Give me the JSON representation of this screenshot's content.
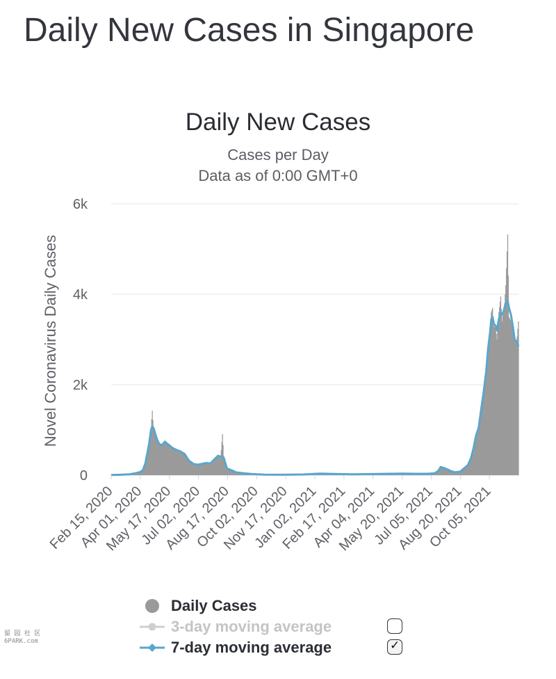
{
  "page": {
    "title": "Daily New Cases in Singapore"
  },
  "chart_data": {
    "type": "bar",
    "title": "Daily New Cases",
    "subtitle_lines": [
      "Cases per Day",
      "Data as of 0:00 GMT+0"
    ],
    "ylabel": "Novel Coronavirus Daily Cases",
    "xlabel": "",
    "ylim": [
      0,
      6000
    ],
    "yticks": [
      {
        "value": 0,
        "label": "0"
      },
      {
        "value": 2000,
        "label": "2k"
      },
      {
        "value": 4000,
        "label": "4k"
      },
      {
        "value": 6000,
        "label": "6k"
      }
    ],
    "x_start": "2020-02-15",
    "x_end": "2021-11-20",
    "xticks": [
      {
        "label": "Feb 15, 2020",
        "date": "2020-02-15"
      },
      {
        "label": "Apr 01, 2020",
        "date": "2020-04-01"
      },
      {
        "label": "May 17, 2020",
        "date": "2020-05-17"
      },
      {
        "label": "Jul 02, 2020",
        "date": "2020-07-02"
      },
      {
        "label": "Aug 17, 2020",
        "date": "2020-08-17"
      },
      {
        "label": "Oct 02, 2020",
        "date": "2020-10-02"
      },
      {
        "label": "Nov 17, 2020",
        "date": "2020-11-17"
      },
      {
        "label": "Jan 02, 2021",
        "date": "2021-01-02"
      },
      {
        "label": "Feb 17, 2021",
        "date": "2021-02-17"
      },
      {
        "label": "Apr 04, 2021",
        "date": "2021-04-04"
      },
      {
        "label": "May 20, 2021",
        "date": "2021-05-20"
      },
      {
        "label": "Jul 05, 2021",
        "date": "2021-07-05"
      },
      {
        "label": "Aug 20, 2021",
        "date": "2021-08-20"
      },
      {
        "label": "Oct 05, 2021",
        "date": "2021-10-05"
      }
    ],
    "series": [
      {
        "name": "Daily Cases",
        "kind": "bar",
        "color": "#9a9a9a",
        "points": [
          [
            "2020-02-15",
            5
          ],
          [
            "2020-03-01",
            10
          ],
          [
            "2020-03-15",
            20
          ],
          [
            "2020-03-25",
            50
          ],
          [
            "2020-04-01",
            70
          ],
          [
            "2020-04-05",
            120
          ],
          [
            "2020-04-09",
            290
          ],
          [
            "2020-04-12",
            500
          ],
          [
            "2020-04-15",
            700
          ],
          [
            "2020-04-18",
            1050
          ],
          [
            "2020-04-20",
            1426
          ],
          [
            "2020-04-22",
            1010
          ],
          [
            "2020-04-25",
            920
          ],
          [
            "2020-04-28",
            800
          ],
          [
            "2020-05-01",
            700
          ],
          [
            "2020-05-05",
            650
          ],
          [
            "2020-05-10",
            760
          ],
          [
            "2020-05-13",
            720
          ],
          [
            "2020-05-17",
            680
          ],
          [
            "2020-05-22",
            600
          ],
          [
            "2020-05-28",
            560
          ],
          [
            "2020-06-03",
            530
          ],
          [
            "2020-06-10",
            470
          ],
          [
            "2020-06-17",
            300
          ],
          [
            "2020-06-24",
            240
          ],
          [
            "2020-07-01",
            220
          ],
          [
            "2020-07-07",
            250
          ],
          [
            "2020-07-14",
            280
          ],
          [
            "2020-07-21",
            260
          ],
          [
            "2020-07-28",
            390
          ],
          [
            "2020-08-02",
            420
          ],
          [
            "2020-08-06",
            380
          ],
          [
            "2020-08-09",
            909
          ],
          [
            "2020-08-11",
            420
          ],
          [
            "2020-08-16",
            140
          ],
          [
            "2020-08-23",
            110
          ],
          [
            "2020-08-30",
            60
          ],
          [
            "2020-09-10",
            40
          ],
          [
            "2020-09-25",
            25
          ],
          [
            "2020-10-15",
            10
          ],
          [
            "2020-11-15",
            8
          ],
          [
            "2020-12-15",
            15
          ],
          [
            "2021-01-10",
            30
          ],
          [
            "2021-02-01",
            25
          ],
          [
            "2021-03-01",
            15
          ],
          [
            "2021-04-01",
            25
          ],
          [
            "2021-05-01",
            30
          ],
          [
            "2021-05-20",
            35
          ],
          [
            "2021-06-10",
            28
          ],
          [
            "2021-07-01",
            30
          ],
          [
            "2021-07-10",
            40
          ],
          [
            "2021-07-16",
            80
          ],
          [
            "2021-07-20",
            180
          ],
          [
            "2021-07-24",
            160
          ],
          [
            "2021-07-30",
            130
          ],
          [
            "2021-08-06",
            80
          ],
          [
            "2021-08-12",
            60
          ],
          [
            "2021-08-20",
            80
          ],
          [
            "2021-08-26",
            150
          ],
          [
            "2021-09-01",
            200
          ],
          [
            "2021-09-06",
            350
          ],
          [
            "2021-09-10",
            550
          ],
          [
            "2021-09-14",
            850
          ],
          [
            "2021-09-18",
            1000
          ],
          [
            "2021-09-22",
            1400
          ],
          [
            "2021-09-26",
            1800
          ],
          [
            "2021-09-30",
            2200
          ],
          [
            "2021-10-03",
            2700
          ],
          [
            "2021-10-06",
            3100
          ],
          [
            "2021-10-08",
            3600
          ],
          [
            "2021-10-10",
            3700
          ],
          [
            "2021-10-12",
            3300
          ],
          [
            "2021-10-15",
            3250
          ],
          [
            "2021-10-17",
            3000
          ],
          [
            "2021-10-20",
            3600
          ],
          [
            "2021-10-23",
            3950
          ],
          [
            "2021-10-25",
            3400
          ],
          [
            "2021-10-27",
            3650
          ],
          [
            "2021-10-29",
            3800
          ],
          [
            "2021-10-31",
            4200
          ],
          [
            "2021-11-03",
            5324
          ],
          [
            "2021-11-05",
            3500
          ],
          [
            "2021-11-08",
            3400
          ],
          [
            "2021-11-11",
            3200
          ],
          [
            "2021-11-14",
            3000
          ],
          [
            "2021-11-17",
            2900
          ],
          [
            "2021-11-20",
            3400
          ]
        ]
      },
      {
        "name": "3-day moving average",
        "kind": "line",
        "color": "#cfcfcf",
        "enabled": false
      },
      {
        "name": "7-day moving average",
        "kind": "line",
        "color": "#5aa6cc",
        "enabled": true,
        "points": [
          [
            "2020-02-15",
            5
          ],
          [
            "2020-03-01",
            10
          ],
          [
            "2020-03-15",
            20
          ],
          [
            "2020-03-25",
            45
          ],
          [
            "2020-04-01",
            70
          ],
          [
            "2020-04-05",
            110
          ],
          [
            "2020-04-09",
            260
          ],
          [
            "2020-04-12",
            480
          ],
          [
            "2020-04-15",
            700
          ],
          [
            "2020-04-18",
            1000
          ],
          [
            "2020-04-20",
            1080
          ],
          [
            "2020-04-22",
            1040
          ],
          [
            "2020-04-25",
            900
          ],
          [
            "2020-04-28",
            770
          ],
          [
            "2020-05-01",
            690
          ],
          [
            "2020-05-05",
            660
          ],
          [
            "2020-05-10",
            740
          ],
          [
            "2020-05-13",
            700
          ],
          [
            "2020-05-17",
            660
          ],
          [
            "2020-05-22",
            600
          ],
          [
            "2020-05-28",
            560
          ],
          [
            "2020-06-03",
            530
          ],
          [
            "2020-06-10",
            470
          ],
          [
            "2020-06-17",
            320
          ],
          [
            "2020-06-24",
            250
          ],
          [
            "2020-07-01",
            230
          ],
          [
            "2020-07-07",
            250
          ],
          [
            "2020-07-14",
            270
          ],
          [
            "2020-07-21",
            260
          ],
          [
            "2020-07-28",
            360
          ],
          [
            "2020-08-02",
            430
          ],
          [
            "2020-08-06",
            410
          ],
          [
            "2020-08-09",
            420
          ],
          [
            "2020-08-11",
            380
          ],
          [
            "2020-08-16",
            150
          ],
          [
            "2020-08-23",
            110
          ],
          [
            "2020-08-30",
            65
          ],
          [
            "2020-09-10",
            45
          ],
          [
            "2020-09-25",
            25
          ],
          [
            "2020-10-15",
            12
          ],
          [
            "2020-11-15",
            10
          ],
          [
            "2020-12-15",
            15
          ],
          [
            "2021-01-10",
            35
          ],
          [
            "2021-02-01",
            28
          ],
          [
            "2021-03-01",
            18
          ],
          [
            "2021-04-01",
            25
          ],
          [
            "2021-05-01",
            30
          ],
          [
            "2021-05-20",
            35
          ],
          [
            "2021-06-10",
            30
          ],
          [
            "2021-07-01",
            32
          ],
          [
            "2021-07-10",
            40
          ],
          [
            "2021-07-16",
            90
          ],
          [
            "2021-07-20",
            180
          ],
          [
            "2021-07-24",
            165
          ],
          [
            "2021-07-30",
            130
          ],
          [
            "2021-08-06",
            85
          ],
          [
            "2021-08-12",
            65
          ],
          [
            "2021-08-20",
            80
          ],
          [
            "2021-08-26",
            150
          ],
          [
            "2021-09-01",
            220
          ],
          [
            "2021-09-06",
            380
          ],
          [
            "2021-09-10",
            600
          ],
          [
            "2021-09-14",
            880
          ],
          [
            "2021-09-18",
            1050
          ],
          [
            "2021-09-22",
            1450
          ],
          [
            "2021-09-26",
            1850
          ],
          [
            "2021-09-30",
            2300
          ],
          [
            "2021-10-03",
            2800
          ],
          [
            "2021-10-06",
            3150
          ],
          [
            "2021-10-08",
            3450
          ],
          [
            "2021-10-10",
            3500
          ],
          [
            "2021-10-12",
            3350
          ],
          [
            "2021-10-15",
            3300
          ],
          [
            "2021-10-17",
            3200
          ],
          [
            "2021-10-20",
            3450
          ],
          [
            "2021-10-23",
            3600
          ],
          [
            "2021-10-25",
            3550
          ],
          [
            "2021-10-27",
            3600
          ],
          [
            "2021-10-29",
            3700
          ],
          [
            "2021-10-31",
            3800
          ],
          [
            "2021-11-03",
            3850
          ],
          [
            "2021-11-05",
            3700
          ],
          [
            "2021-11-08",
            3550
          ],
          [
            "2021-11-11",
            3300
          ],
          [
            "2021-11-14",
            3000
          ],
          [
            "2021-11-17",
            2950
          ],
          [
            "2021-11-20",
            2850
          ]
        ]
      }
    ]
  },
  "legend": {
    "items": [
      {
        "label": "Daily Cases",
        "symbol": "circle",
        "color": "#9a9a9a",
        "has_checkbox": false
      },
      {
        "label": "3-day moving average",
        "symbol": "line-circle",
        "color": "#cfcfcf",
        "has_checkbox": true,
        "checked": false
      },
      {
        "label": "7-day moving average",
        "symbol": "line-diamond",
        "color": "#5aa6cc",
        "has_checkbox": true,
        "checked": true
      }
    ]
  },
  "watermark": {
    "line1": "留 园 社 区",
    "line2": "6PARK.com"
  }
}
